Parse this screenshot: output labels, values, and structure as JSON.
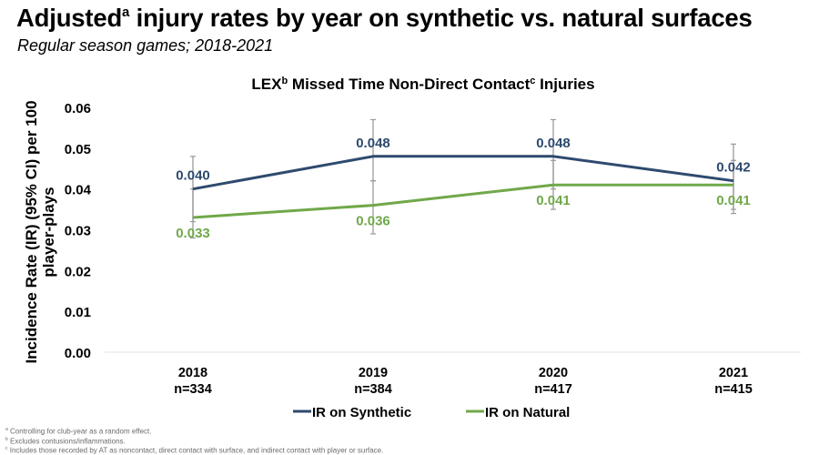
{
  "header": {
    "title": "Adjusted",
    "title_sup": "a",
    "title_rest": " injury rates by year on synthetic vs. natural surfaces",
    "subtitle": "Regular season games; 2018-2021"
  },
  "chart_data": {
    "type": "line",
    "title": "LEX",
    "title_parts": [
      {
        "text": "LEX",
        "sup": false
      },
      {
        "text": "b",
        "sup": true
      },
      {
        "text": " Missed Time Non-Direct Contact",
        "sup": false
      },
      {
        "text": "c",
        "sup": true
      },
      {
        "text": " Injuries",
        "sup": false
      }
    ],
    "xlabel": "",
    "ylabel_lines": [
      "Incidence Rate (IR) (95% CI) per 100",
      "player-plays"
    ],
    "ylim": [
      0,
      0.06
    ],
    "yticks": [
      "0.00",
      "0.01",
      "0.02",
      "0.03",
      "0.04",
      "0.05",
      "0.06"
    ],
    "ytick_values": [
      0,
      0.01,
      0.02,
      0.03,
      0.04,
      0.05,
      0.06
    ],
    "categories": [
      "2018",
      "2019",
      "2020",
      "2021"
    ],
    "category_sublabels": [
      "n=334",
      "n=384",
      "n=417",
      "n=415"
    ],
    "grid": false,
    "legend_position": "bottom",
    "series": [
      {
        "name": "IR on Synthetic",
        "color": "#2e4a6e",
        "values": [
          0.04,
          0.048,
          0.048,
          0.042
        ],
        "labels": [
          "0.040",
          "0.048",
          "0.048",
          "0.042"
        ],
        "ci_upper": [
          0.048,
          0.057,
          0.057,
          0.051
        ],
        "ci_lower": [
          0.032,
          0.042,
          0.04,
          0.035
        ],
        "label_position": "above"
      },
      {
        "name": "IR on Natural",
        "color": "#70a84a",
        "values": [
          0.033,
          0.036,
          0.041,
          0.041
        ],
        "labels": [
          "0.033",
          "0.036",
          "0.041",
          "0.041"
        ],
        "ci_upper": [
          0.04,
          0.042,
          0.047,
          0.047
        ],
        "ci_lower": [
          0.028,
          0.029,
          0.035,
          0.034
        ],
        "label_position": "below"
      }
    ]
  },
  "footnotes": [
    {
      "sup": "a",
      "text": "Controlling for club-year as a random effect."
    },
    {
      "sup": "b",
      "text": "Excludes contusions/inflammations."
    },
    {
      "sup": "c",
      "text": "Includes those recorded by AT as noncontact, direct contact with surface, and indirect contact with player or surface."
    }
  ]
}
